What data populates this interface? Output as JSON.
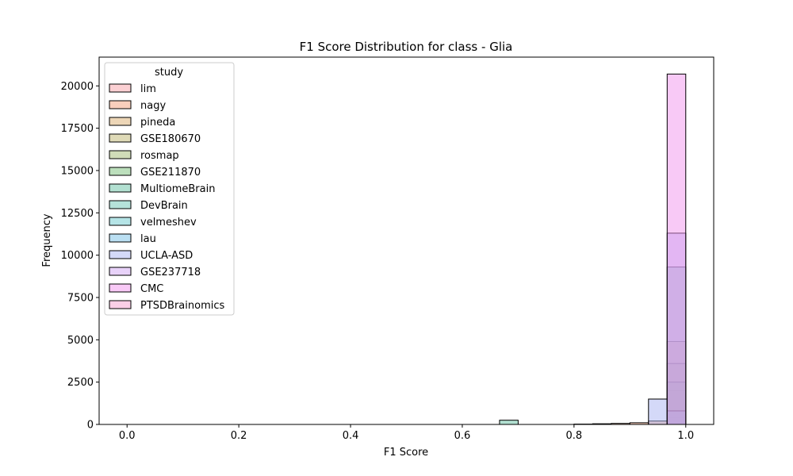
{
  "chart_data": {
    "type": "bar",
    "title": "F1 Score Distribution for class - Glia",
    "xlabel": "F1 Score",
    "ylabel": "Frequency",
    "xlim": [
      -0.05,
      1.05
    ],
    "ylim": [
      0,
      21700
    ],
    "xticks": [
      0.0,
      0.2,
      0.4,
      0.6,
      0.8,
      1.0
    ],
    "xtick_labels": [
      "0.0",
      "0.2",
      "0.4",
      "0.6",
      "0.8",
      "1.0"
    ],
    "yticks": [
      0,
      2500,
      5000,
      7500,
      10000,
      12500,
      15000,
      17500,
      20000
    ],
    "ytick_labels": [
      "0",
      "2500",
      "5000",
      "7500",
      "10000",
      "12500",
      "15000",
      "17500",
      "20000"
    ],
    "grid": false,
    "legend": {
      "title": "study",
      "position": "top-left"
    },
    "bin_edges": [
      0.0,
      0.0333,
      0.0667,
      0.1,
      0.1333,
      0.1667,
      0.2,
      0.2333,
      0.2667,
      0.3,
      0.3333,
      0.3667,
      0.4,
      0.4333,
      0.4667,
      0.5,
      0.5333,
      0.5667,
      0.6,
      0.6333,
      0.6667,
      0.7,
      0.7333,
      0.7667,
      0.8,
      0.8333,
      0.8667,
      0.9,
      0.9333,
      0.9667,
      1.0
    ],
    "series": [
      {
        "name": "lim",
        "color": "#f7a1a8",
        "values": [
          0,
          0,
          0,
          0,
          0,
          0,
          0,
          0,
          0,
          0,
          0,
          0,
          0,
          0,
          0,
          0,
          0,
          0,
          0,
          0,
          0,
          0,
          0,
          0,
          0,
          0,
          0,
          0,
          0,
          0
        ]
      },
      {
        "name": "nagy",
        "color": "#f3a07a",
        "values": [
          0,
          0,
          0,
          0,
          0,
          0,
          0,
          0,
          0,
          0,
          0,
          0,
          0,
          0,
          0,
          0,
          0,
          0,
          0,
          0,
          0,
          0,
          0,
          0,
          20,
          40,
          60,
          100,
          200,
          400
        ]
      },
      {
        "name": "pineda",
        "color": "#dcae70",
        "values": [
          0,
          0,
          0,
          0,
          0,
          0,
          0,
          0,
          0,
          0,
          0,
          0,
          0,
          0,
          0,
          0,
          0,
          0,
          0,
          0,
          0,
          0,
          0,
          0,
          0,
          0,
          0,
          0,
          0,
          2000
        ]
      },
      {
        "name": "GSE180670",
        "color": "#bfb56f",
        "values": [
          0,
          0,
          0,
          0,
          0,
          0,
          0,
          0,
          0,
          0,
          0,
          0,
          0,
          0,
          0,
          0,
          0,
          0,
          0,
          0,
          0,
          0,
          0,
          0,
          0,
          0,
          0,
          0,
          0,
          4900
        ]
      },
      {
        "name": "rosmap",
        "color": "#a1ba71",
        "values": [
          0,
          0,
          0,
          0,
          0,
          0,
          0,
          0,
          0,
          0,
          0,
          0,
          0,
          0,
          0,
          0,
          0,
          0,
          0,
          0,
          0,
          0,
          0,
          0,
          0,
          0,
          0,
          0,
          0,
          3600
        ]
      },
      {
        "name": "GSE211870",
        "color": "#79bf7a",
        "values": [
          0,
          0,
          0,
          0,
          0,
          0,
          0,
          0,
          0,
          0,
          0,
          0,
          0,
          0,
          0,
          0,
          0,
          0,
          0,
          0,
          0,
          0,
          0,
          0,
          0,
          0,
          0,
          0,
          0,
          2500
        ]
      },
      {
        "name": "MultiomeBrain",
        "color": "#66c2a4",
        "values": [
          0,
          0,
          0,
          0,
          0,
          0,
          0,
          0,
          0,
          0,
          0,
          0,
          0,
          0,
          0,
          0,
          0,
          0,
          0,
          0,
          250,
          0,
          0,
          0,
          0,
          0,
          0,
          0,
          0,
          9300
        ]
      },
      {
        "name": "DevBrain",
        "color": "#6cc6b6",
        "values": [
          0,
          0,
          0,
          0,
          0,
          0,
          0,
          0,
          0,
          0,
          0,
          0,
          0,
          0,
          0,
          0,
          0,
          0,
          0,
          0,
          0,
          0,
          0,
          0,
          0,
          0,
          0,
          0,
          0,
          800
        ]
      },
      {
        "name": "velmeshev",
        "color": "#6cc9cd",
        "values": [
          0,
          0,
          0,
          0,
          0,
          0,
          0,
          0,
          0,
          0,
          0,
          0,
          0,
          0,
          0,
          0,
          0,
          0,
          0,
          0,
          0,
          0,
          0,
          0,
          0,
          0,
          0,
          0,
          0,
          0
        ]
      },
      {
        "name": "lau",
        "color": "#76bfe6",
        "values": [
          0,
          0,
          0,
          0,
          0,
          0,
          0,
          0,
          0,
          0,
          0,
          0,
          0,
          0,
          0,
          0,
          0,
          0,
          0,
          0,
          0,
          0,
          0,
          0,
          0,
          0,
          0,
          0,
          0,
          0
        ]
      },
      {
        "name": "UCLA-ASD",
        "color": "#aab4f2",
        "values": [
          0,
          0,
          0,
          0,
          0,
          0,
          0,
          0,
          0,
          0,
          0,
          0,
          0,
          0,
          0,
          0,
          0,
          0,
          0,
          0,
          0,
          0,
          0,
          0,
          0,
          0,
          0,
          0,
          1500,
          11300
        ]
      },
      {
        "name": "GSE237718",
        "color": "#d1a6f4",
        "values": [
          0,
          0,
          0,
          0,
          0,
          0,
          0,
          0,
          0,
          0,
          0,
          0,
          0,
          0,
          0,
          0,
          0,
          0,
          0,
          0,
          0,
          0,
          0,
          0,
          0,
          0,
          0,
          0,
          0,
          0
        ]
      },
      {
        "name": "CMC",
        "color": "#f293ee",
        "values": [
          0,
          0,
          0,
          0,
          0,
          0,
          0,
          0,
          0,
          0,
          0,
          0,
          0,
          0,
          0,
          0,
          0,
          0,
          0,
          0,
          0,
          0,
          0,
          0,
          0,
          0,
          0,
          0,
          0,
          20700
        ]
      },
      {
        "name": "PTSDBrainomics",
        "color": "#f7a0cf",
        "values": [
          0,
          0,
          0,
          0,
          0,
          0,
          0,
          0,
          0,
          0,
          0,
          0,
          0,
          0,
          0,
          0,
          0,
          0,
          0,
          0,
          0,
          0,
          0,
          0,
          0,
          0,
          0,
          0,
          0,
          0
        ]
      }
    ]
  }
}
